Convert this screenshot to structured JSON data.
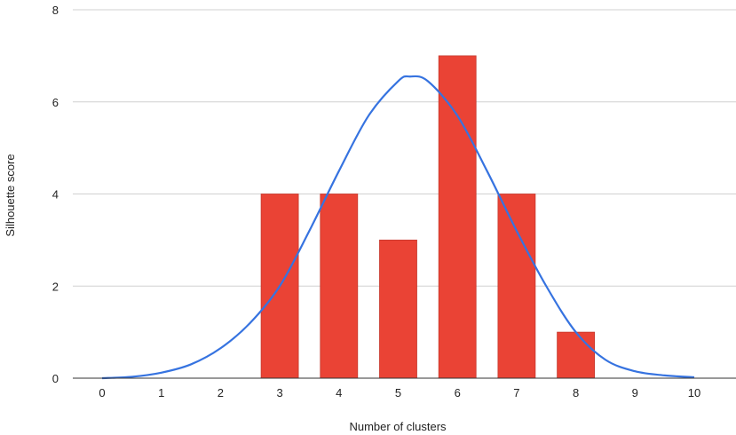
{
  "chart_data": {
    "type": "bar",
    "xlabel": "Number of clusters",
    "ylabel": "Silhouette score",
    "xlim": [
      0,
      10
    ],
    "ylim": [
      0,
      8
    ],
    "x_ticks": [
      "0",
      "1",
      "2",
      "3",
      "4",
      "5",
      "6",
      "7",
      "8",
      "9",
      "10"
    ],
    "y_ticks": [
      "0",
      "2",
      "4",
      "6",
      "8"
    ],
    "grid": "horizontal",
    "bars": {
      "x": [
        3,
        4,
        5,
        6,
        7,
        8
      ],
      "values": [
        4,
        4,
        3,
        7,
        4,
        1
      ],
      "color": "#ea4335"
    },
    "curve": {
      "type": "line",
      "color": "#3673e0",
      "x": [
        0,
        0.5,
        1,
        1.5,
        2,
        2.5,
        3,
        3.5,
        4,
        4.5,
        5,
        5.2,
        5.5,
        6,
        6.5,
        7,
        7.5,
        8,
        8.5,
        9,
        9.5,
        10
      ],
      "y": [
        0,
        0.03,
        0.12,
        0.3,
        0.65,
        1.2,
        2.0,
        3.2,
        4.5,
        5.7,
        6.45,
        6.55,
        6.45,
        5.7,
        4.5,
        3.2,
        2.0,
        1.0,
        0.4,
        0.15,
        0.06,
        0.02
      ]
    }
  }
}
